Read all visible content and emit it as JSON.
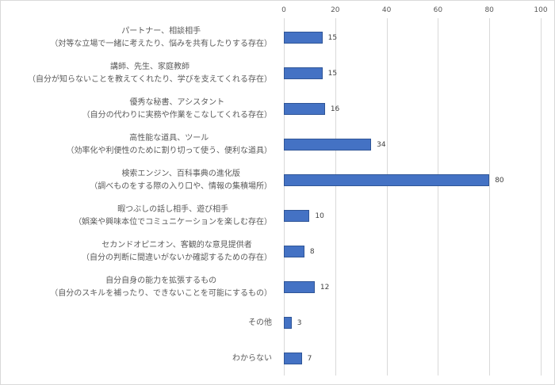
{
  "chart_data": {
    "type": "bar",
    "orientation": "horizontal",
    "title": "",
    "xlabel": "",
    "ylabel": "",
    "xlim": [
      0,
      100
    ],
    "x_ticks": [
      "0",
      "20",
      "40",
      "60",
      "80",
      "100"
    ],
    "grid": true,
    "legend": null,
    "bar_color": "#4472c4",
    "categories": [
      {
        "line1": "パートナー、相談相手",
        "line2": "（対等な立場で一緒に考えたり、悩みを共有したりする存在）"
      },
      {
        "line1": "講師、先生、家庭教師",
        "line2": "（自分が知らないことを教えてくれたり、学びを支えてくれる存在）"
      },
      {
        "line1": "優秀な秘書、アシスタント",
        "line2": "（自分の代わりに実務や作業をこなしてくれる存在）"
      },
      {
        "line1": "高性能な道具、ツール",
        "line2": "（効率化や利便性のために割り切って使う、便利な道具）"
      },
      {
        "line1": "検索エンジン、百科事典の進化版",
        "line2": "（調べものをする際の入り口や、情報の集積場所）"
      },
      {
        "line1": "暇つぶしの話し相手、遊び相手",
        "line2": "（娯楽や興味本位でコミュニケーションを楽しむ存在）"
      },
      {
        "line1": "セカンドオピニオン、客観的な意見提供者",
        "line2": "（自分の判断に間違いがないか確認するための存在）"
      },
      {
        "line1": "自分自身の能力を拡張するもの",
        "line2": "（自分のスキルを補ったり、できないことを可能にするもの）"
      },
      {
        "line1": "その他",
        "line2": ""
      },
      {
        "line1": "わからない",
        "line2": ""
      }
    ],
    "values": [
      15,
      15,
      16,
      34,
      80,
      10,
      8,
      12,
      3,
      7
    ],
    "value_labels": [
      "15",
      "15",
      "16",
      "34",
      "80",
      "10",
      "8",
      "12",
      "3",
      "7"
    ]
  }
}
